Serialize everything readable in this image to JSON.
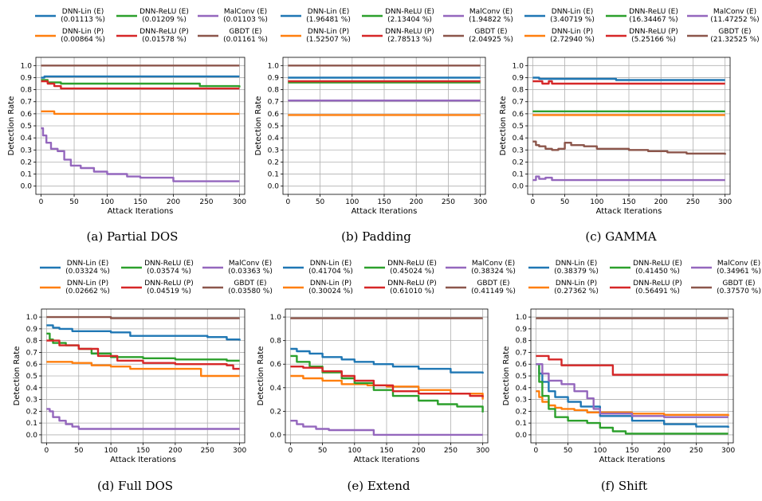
{
  "colors": {
    "DNN-Lin (E)": "#1f77b4",
    "DNN-Lin (P)": "#ff7f0e",
    "DNN-ReLU (E)": "#2ca02c",
    "DNN-ReLU (P)": "#d62728",
    "MalConv (E)": "#9467bd",
    "GBDT (E)": "#8c564b"
  },
  "chart_data": [
    {
      "type": "line",
      "caption": "(a) Partial DOS",
      "xlabel": "Attack Iterations",
      "ylabel": "Detection Rate",
      "xlim": [
        0,
        300
      ],
      "ylim": [
        0,
        1
      ],
      "xticks": [
        "0",
        "50",
        "100",
        "150",
        "200",
        "250",
        "300"
      ],
      "yticks": [
        "0.0",
        "0.1",
        "0.2",
        "0.3",
        "0.4",
        "0.5",
        "0.6",
        "0.7",
        "0.8",
        "0.9",
        "1.0"
      ],
      "grid": true,
      "legend_position": "top",
      "series": [
        {
          "name": "DNN-Lin (E)",
          "pct": "(0.01113 %)",
          "x": [
            0,
            5,
            300
          ],
          "y": [
            0.9,
            0.91,
            0.91
          ]
        },
        {
          "name": "DNN-Lin (P)",
          "pct": "(0.00864 %)",
          "x": [
            0,
            10,
            20,
            300
          ],
          "y": [
            0.62,
            0.62,
            0.6,
            0.6
          ]
        },
        {
          "name": "DNN-ReLU (E)",
          "pct": "(0.01209 %)",
          "x": [
            0,
            10,
            30,
            200,
            240,
            300
          ],
          "y": [
            0.88,
            0.86,
            0.85,
            0.85,
            0.83,
            0.82
          ]
        },
        {
          "name": "DNN-ReLU (P)",
          "pct": "(0.01578 %)",
          "x": [
            0,
            10,
            20,
            30,
            300
          ],
          "y": [
            0.87,
            0.85,
            0.83,
            0.81,
            0.81
          ]
        },
        {
          "name": "MalConv (E)",
          "pct": "(0.01103 %)",
          "x": [
            0,
            3,
            8,
            15,
            25,
            35,
            45,
            60,
            80,
            100,
            130,
            150,
            200,
            300
          ],
          "y": [
            0.48,
            0.42,
            0.36,
            0.31,
            0.29,
            0.22,
            0.17,
            0.15,
            0.12,
            0.1,
            0.08,
            0.07,
            0.04,
            0.04
          ]
        },
        {
          "name": "GBDT (E)",
          "pct": "(0.01161 %)",
          "x": [
            0,
            300
          ],
          "y": [
            1.0,
            1.0
          ]
        }
      ]
    },
    {
      "type": "line",
      "caption": "(b) Padding",
      "xlabel": "Attack Iterations",
      "ylabel": "Detection Rate",
      "xlim": [
        0,
        300
      ],
      "ylim": [
        0,
        1
      ],
      "xticks": [
        "0",
        "50",
        "100",
        "150",
        "200",
        "250",
        "300"
      ],
      "yticks": [
        "0.0",
        "0.1",
        "0.2",
        "0.3",
        "0.4",
        "0.5",
        "0.6",
        "0.7",
        "0.8",
        "0.9",
        "1.0"
      ],
      "grid": true,
      "legend_position": "top",
      "series": [
        {
          "name": "DNN-Lin (E)",
          "pct": "(1.96481 %)",
          "x": [
            0,
            300
          ],
          "y": [
            0.9,
            0.9
          ]
        },
        {
          "name": "DNN-Lin (P)",
          "pct": "(1.52507 %)",
          "x": [
            0,
            300
          ],
          "y": [
            0.59,
            0.59
          ]
        },
        {
          "name": "DNN-ReLU (E)",
          "pct": "(2.13404 %)",
          "x": [
            0,
            300
          ],
          "y": [
            0.86,
            0.86
          ]
        },
        {
          "name": "DNN-ReLU (P)",
          "pct": "(2.78513 %)",
          "x": [
            0,
            300
          ],
          "y": [
            0.87,
            0.87
          ]
        },
        {
          "name": "MalConv (E)",
          "pct": "(1.94822 %)",
          "x": [
            0,
            300
          ],
          "y": [
            0.71,
            0.71
          ]
        },
        {
          "name": "GBDT (E)",
          "pct": "(2.04925 %)",
          "x": [
            0,
            300
          ],
          "y": [
            1.0,
            1.0
          ]
        }
      ]
    },
    {
      "type": "line",
      "caption": "(c) GAMMA",
      "xlabel": "Attack Iterations",
      "ylabel": "Detection Rate",
      "xlim": [
        0,
        300
      ],
      "ylim": [
        0,
        1
      ],
      "xticks": [
        "0",
        "50",
        "100",
        "150",
        "200",
        "250",
        "300"
      ],
      "yticks": [
        "0.0",
        "0.1",
        "0.2",
        "0.3",
        "0.4",
        "0.5",
        "0.6",
        "0.7",
        "0.8",
        "0.9",
        "1.0"
      ],
      "grid": true,
      "legend_position": "top",
      "series": [
        {
          "name": "DNN-Lin (E)",
          "pct": "(3.40719 %)",
          "x": [
            0,
            10,
            130,
            300
          ],
          "y": [
            0.9,
            0.89,
            0.88,
            0.88
          ]
        },
        {
          "name": "DNN-Lin (P)",
          "pct": "(2.72940 %)",
          "x": [
            0,
            300
          ],
          "y": [
            0.59,
            0.59
          ]
        },
        {
          "name": "DNN-ReLU (E)",
          "pct": "(16.34467 %)",
          "x": [
            0,
            300
          ],
          "y": [
            0.62,
            0.62
          ]
        },
        {
          "name": "DNN-ReLU (P)",
          "pct": "(5.25166 %)",
          "x": [
            0,
            15,
            25,
            30,
            35,
            300
          ],
          "y": [
            0.87,
            0.85,
            0.87,
            0.85,
            0.85,
            0.85
          ]
        },
        {
          "name": "MalConv (E)",
          "pct": "(11.47252 %)",
          "x": [
            0,
            5,
            10,
            20,
            30,
            300
          ],
          "y": [
            0.05,
            0.08,
            0.06,
            0.07,
            0.05,
            0.05
          ]
        },
        {
          "name": "GBDT (E)",
          "pct": "(21.32525 %)",
          "x": [
            0,
            5,
            10,
            20,
            30,
            40,
            50,
            60,
            80,
            100,
            120,
            150,
            180,
            210,
            240,
            270,
            300
          ],
          "y": [
            0.37,
            0.34,
            0.33,
            0.31,
            0.3,
            0.31,
            0.36,
            0.34,
            0.33,
            0.31,
            0.31,
            0.3,
            0.29,
            0.28,
            0.27,
            0.27,
            0.26
          ]
        }
      ]
    },
    {
      "type": "line",
      "caption": "(d) Full DOS",
      "xlabel": "Attack Iterations",
      "ylabel": "Detection Rate",
      "xlim": [
        0,
        300
      ],
      "ylim": [
        0,
        1
      ],
      "xticks": [
        "0",
        "50",
        "100",
        "150",
        "200",
        "250",
        "300"
      ],
      "yticks": [
        "0.0",
        "0.1",
        "0.2",
        "0.3",
        "0.4",
        "0.5",
        "0.6",
        "0.7",
        "0.8",
        "0.9",
        "1.0"
      ],
      "grid": true,
      "legend_position": "top",
      "series": [
        {
          "name": "DNN-Lin (E)",
          "pct": "(0.03324 %)",
          "x": [
            0,
            10,
            20,
            40,
            100,
            130,
            250,
            280,
            300
          ],
          "y": [
            0.93,
            0.91,
            0.9,
            0.88,
            0.87,
            0.84,
            0.83,
            0.81,
            0.8
          ]
        },
        {
          "name": "DNN-Lin (P)",
          "pct": "(0.02662 %)",
          "x": [
            0,
            40,
            70,
            100,
            130,
            230,
            240,
            300
          ],
          "y": [
            0.62,
            0.61,
            0.59,
            0.58,
            0.56,
            0.56,
            0.5,
            0.5
          ]
        },
        {
          "name": "DNN-ReLU (E)",
          "pct": "(0.03574 %)",
          "x": [
            0,
            5,
            10,
            30,
            50,
            70,
            100,
            150,
            200,
            280,
            300
          ],
          "y": [
            0.86,
            0.81,
            0.78,
            0.76,
            0.73,
            0.69,
            0.66,
            0.65,
            0.64,
            0.63,
            0.63
          ]
        },
        {
          "name": "DNN-ReLU (P)",
          "pct": "(0.04519 %)",
          "x": [
            0,
            20,
            50,
            80,
            110,
            150,
            200,
            250,
            280,
            290,
            300
          ],
          "y": [
            0.8,
            0.76,
            0.73,
            0.67,
            0.63,
            0.61,
            0.6,
            0.6,
            0.59,
            0.56,
            0.56
          ]
        },
        {
          "name": "MalConv (E)",
          "pct": "(0.03363 %)",
          "x": [
            0,
            5,
            10,
            20,
            30,
            40,
            50,
            300
          ],
          "y": [
            0.22,
            0.2,
            0.15,
            0.12,
            0.09,
            0.07,
            0.05,
            0.05
          ]
        },
        {
          "name": "GBDT (E)",
          "pct": "(0.03580 %)",
          "x": [
            0,
            100,
            300
          ],
          "y": [
            1.0,
            0.99,
            0.99
          ]
        }
      ]
    },
    {
      "type": "line",
      "caption": "(e) Extend",
      "xlabel": "Attack Iterations",
      "ylabel": "Detection Rate",
      "xlim": [
        0,
        300
      ],
      "ylim": [
        0,
        1
      ],
      "xticks": [
        "0",
        "50",
        "100",
        "150",
        "200",
        "250",
        "300"
      ],
      "yticks": [
        "0.0",
        "0.2",
        "0.4",
        "0.6",
        "0.8",
        "1.0"
      ],
      "grid": true,
      "legend_position": "top",
      "series": [
        {
          "name": "DNN-Lin (E)",
          "pct": "(0.41704 %)",
          "x": [
            0,
            10,
            30,
            50,
            80,
            100,
            130,
            160,
            200,
            250,
            300
          ],
          "y": [
            0.73,
            0.71,
            0.69,
            0.66,
            0.64,
            0.62,
            0.6,
            0.58,
            0.56,
            0.53,
            0.52
          ]
        },
        {
          "name": "DNN-Lin (P)",
          "pct": "(0.30024 %)",
          "x": [
            0,
            20,
            50,
            80,
            120,
            150,
            200,
            250,
            300
          ],
          "y": [
            0.5,
            0.48,
            0.46,
            0.43,
            0.42,
            0.41,
            0.38,
            0.35,
            0.3
          ]
        },
        {
          "name": "DNN-ReLU (E)",
          "pct": "(0.45024 %)",
          "x": [
            0,
            10,
            30,
            50,
            80,
            100,
            130,
            160,
            200,
            230,
            260,
            300
          ],
          "y": [
            0.67,
            0.62,
            0.58,
            0.53,
            0.48,
            0.44,
            0.38,
            0.33,
            0.29,
            0.26,
            0.24,
            0.19
          ]
        },
        {
          "name": "DNN-ReLU (P)",
          "pct": "(0.61010 %)",
          "x": [
            0,
            20,
            50,
            80,
            100,
            130,
            160,
            200,
            250,
            280,
            300
          ],
          "y": [
            0.58,
            0.57,
            0.54,
            0.5,
            0.46,
            0.42,
            0.37,
            0.35,
            0.35,
            0.33,
            0.32
          ]
        },
        {
          "name": "MalConv (E)",
          "pct": "(0.38324 %)",
          "x": [
            0,
            10,
            20,
            40,
            60,
            100,
            130,
            300
          ],
          "y": [
            0.12,
            0.09,
            0.07,
            0.05,
            0.04,
            0.04,
            0.0,
            0.0
          ]
        },
        {
          "name": "GBDT (E)",
          "pct": "(0.41149 %)",
          "x": [
            0,
            300
          ],
          "y": [
            0.99,
            0.99
          ]
        }
      ]
    },
    {
      "type": "line",
      "caption": "(f) Shift",
      "xlabel": "Attack Iterations",
      "ylabel": "Detection Rate",
      "xlim": [
        0,
        300
      ],
      "ylim": [
        0,
        1
      ],
      "xticks": [
        "0",
        "50",
        "100",
        "150",
        "200",
        "250",
        "300"
      ],
      "yticks": [
        "0.0",
        "0.1",
        "0.2",
        "0.3",
        "0.4",
        "0.5",
        "0.6",
        "0.7",
        "0.8",
        "0.9",
        "1.0"
      ],
      "grid": true,
      "legend_position": "top",
      "series": [
        {
          "name": "DNN-Lin (E)",
          "pct": "(0.38379 %)",
          "x": [
            0,
            5,
            10,
            20,
            30,
            50,
            70,
            100,
            150,
            200,
            250,
            300
          ],
          "y": [
            0.6,
            0.52,
            0.45,
            0.37,
            0.32,
            0.28,
            0.24,
            0.16,
            0.12,
            0.09,
            0.07,
            0.06
          ]
        },
        {
          "name": "DNN-Lin (P)",
          "pct": "(0.27362 %)",
          "x": [
            0,
            5,
            10,
            20,
            30,
            40,
            60,
            80,
            100,
            150,
            200,
            300
          ],
          "y": [
            0.37,
            0.32,
            0.28,
            0.25,
            0.23,
            0.22,
            0.21,
            0.19,
            0.19,
            0.18,
            0.17,
            0.16
          ]
        },
        {
          "name": "DNN-ReLU (E)",
          "pct": "(0.41450 %)",
          "x": [
            0,
            5,
            10,
            20,
            30,
            50,
            80,
            100,
            120,
            140,
            300
          ],
          "y": [
            0.6,
            0.45,
            0.33,
            0.22,
            0.15,
            0.12,
            0.1,
            0.06,
            0.03,
            0.01,
            0.01
          ]
        },
        {
          "name": "DNN-ReLU (P)",
          "pct": "(0.56491 %)",
          "x": [
            0,
            20,
            40,
            120,
            300
          ],
          "y": [
            0.67,
            0.64,
            0.59,
            0.51,
            0.51
          ]
        },
        {
          "name": "MalConv (E)",
          "pct": "(0.34961 %)",
          "x": [
            0,
            10,
            20,
            40,
            60,
            80,
            90,
            100,
            150,
            200,
            300
          ],
          "y": [
            0.6,
            0.52,
            0.46,
            0.43,
            0.37,
            0.31,
            0.22,
            0.18,
            0.16,
            0.15,
            0.15
          ]
        },
        {
          "name": "GBDT (E)",
          "pct": "(0.37570 %)",
          "x": [
            0,
            300
          ],
          "y": [
            0.99,
            0.99
          ]
        }
      ]
    }
  ]
}
